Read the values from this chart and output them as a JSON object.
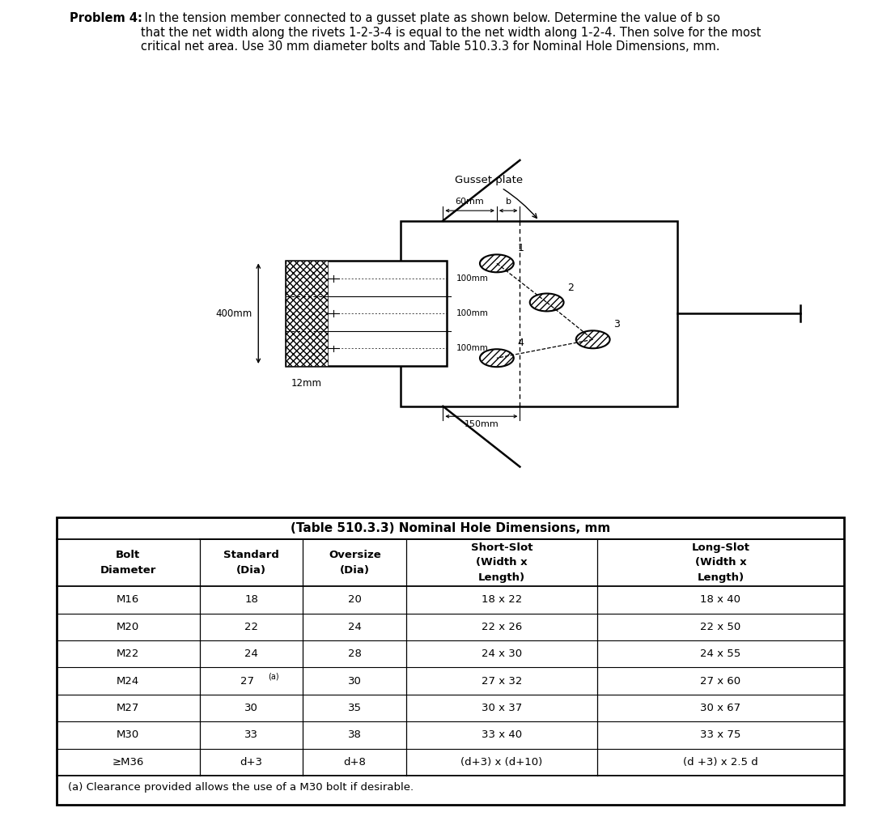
{
  "title_bold": "Problem 4:",
  "title_rest": " In the tension member connected to a gusset plate as shown below. Determine the value of b so\nthat the net width along the rivets 1-2-3-4 is equal to the net width along 1-2-4. Then solve for the most\ncritical net area. Use 30 mm diameter bolts and Table 510.3.3 for Nominal Hole Dimensions, mm.",
  "table_title": "(Table 510.3.3) Nominal Hole Dimensions, mm",
  "col_headers_row1": [
    "Bolt",
    "Standard",
    "Oversize",
    "Short-Slot",
    "Long-Slot"
  ],
  "col_headers_row2": [
    "Diameter",
    "(Dia)",
    "(Dia)",
    "(Width x",
    "(Width x"
  ],
  "col_headers_row3": [
    "",
    "",
    "",
    "Length)",
    "Length)"
  ],
  "table_data": [
    [
      "M16",
      "18",
      "20",
      "18 x 22",
      "18 x 40"
    ],
    [
      "M20",
      "22",
      "24",
      "22 x 26",
      "22 x 50"
    ],
    [
      "M22",
      "24",
      "28",
      "24 x 30",
      "24 x 55"
    ],
    [
      "M24",
      "27(a)",
      "30",
      "27 x 32",
      "27 x 60"
    ],
    [
      "M27",
      "30",
      "35",
      "30 x 37",
      "30 x 67"
    ],
    [
      "M30",
      "33",
      "38",
      "33 x 40",
      "33 x 75"
    ],
    [
      "≥M36",
      "d+3",
      "d+8",
      "(d+3) x (d+10)",
      "(d +3) x 2.5 d"
    ]
  ],
  "footnote": "(a) Clearance provided allows the use of a M30 bolt if desirable.",
  "bg_color": "#ffffff",
  "gusset_label": "Gusset plate",
  "dim_60mm": "60mm",
  "dim_b": "b",
  "dim_400mm": "400mm",
  "dim_100mm": "100mm",
  "dim_150mm": "150mm",
  "dim_12mm": "12mm"
}
